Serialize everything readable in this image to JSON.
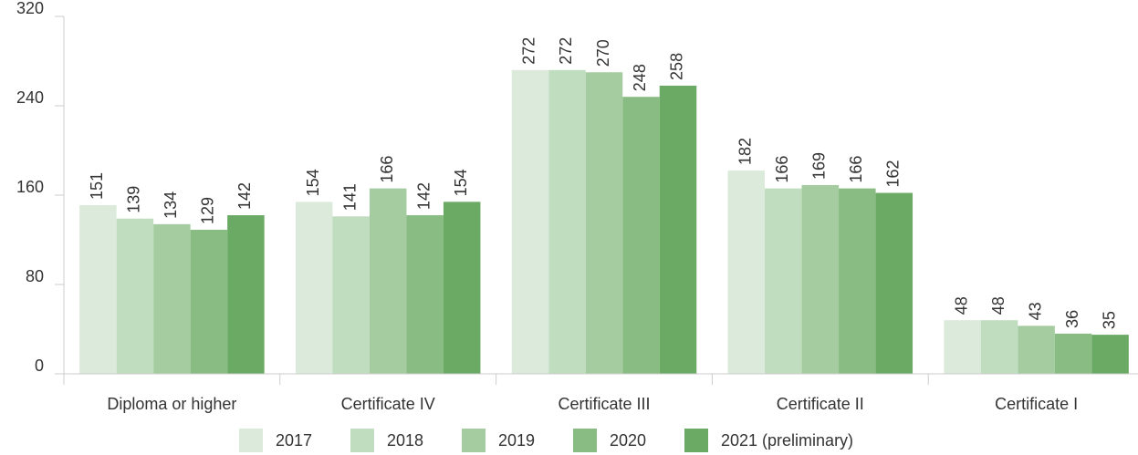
{
  "chart_data": {
    "type": "bar",
    "categories": [
      "Diploma or higher",
      "Certificate IV",
      "Certificate III",
      "Certificate II",
      "Certificate I"
    ],
    "series": [
      {
        "name": "2017",
        "color": "#dbeadb",
        "values": [
          151,
          154,
          272,
          182,
          48
        ]
      },
      {
        "name": "2018",
        "color": "#c1ddc0",
        "values": [
          139,
          141,
          272,
          166,
          48
        ]
      },
      {
        "name": "2019",
        "color": "#a5cca1",
        "values": [
          134,
          166,
          270,
          169,
          43
        ]
      },
      {
        "name": "2020",
        "color": "#89bc83",
        "values": [
          129,
          142,
          248,
          166,
          36
        ]
      },
      {
        "name": "2021 (preliminary)",
        "color": "#6aaa64",
        "values": [
          142,
          154,
          258,
          162,
          35
        ]
      }
    ],
    "ylim": [
      0,
      320
    ],
    "yticks": [
      0,
      80,
      160,
      240,
      320
    ],
    "legend": "bottom"
  }
}
